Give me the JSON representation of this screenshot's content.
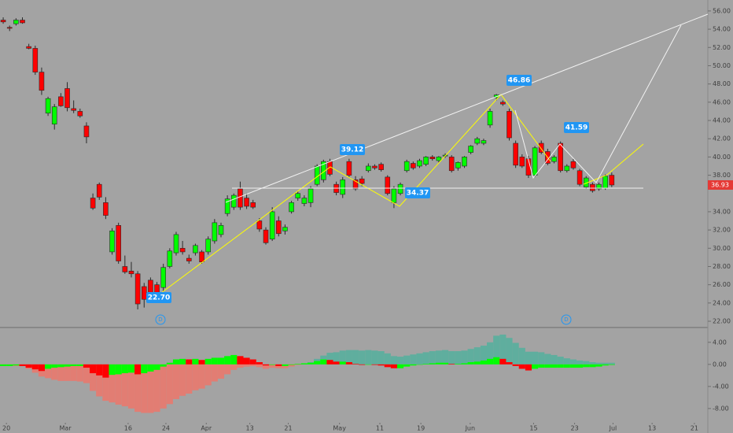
{
  "chart_data": [
    {
      "type": "candlestick",
      "xlim": [
        -0.5,
        110
      ],
      "ylim": [
        21.4,
        57.2
      ],
      "yticks": [
        {
          "value": 56,
          "label": "56.00"
        },
        {
          "value": 54,
          "label": "54.00"
        },
        {
          "value": 52,
          "label": "52.00"
        },
        {
          "value": 50,
          "label": "50.00"
        },
        {
          "value": 48,
          "label": "48.00"
        },
        {
          "value": 46,
          "label": "46.00"
        },
        {
          "value": 44,
          "label": "44.00"
        },
        {
          "value": 42,
          "label": "42.00"
        },
        {
          "value": 40,
          "label": "40.00"
        },
        {
          "value": 38,
          "label": "38.00"
        },
        {
          "value": 34,
          "label": "34.00"
        },
        {
          "value": 32,
          "label": "32.00"
        },
        {
          "value": 30,
          "label": "30.00"
        },
        {
          "value": 28,
          "label": "28.00"
        },
        {
          "value": 26,
          "label": "26.00"
        },
        {
          "value": 24,
          "label": "24.00"
        },
        {
          "value": 22,
          "label": "22.00"
        }
      ],
      "up_color": "#00ff00",
      "down_color": "#ff0000",
      "open": [
        55.0,
        54.2,
        54.6,
        55.0,
        52.1,
        51.9,
        49.3,
        44.8,
        43.6,
        46.6,
        47.5,
        45.3,
        45.0,
        43.4,
        35.5,
        37.0,
        35.0,
        29.6,
        32.5,
        28.0,
        27.5,
        27.2,
        25.8,
        26.5,
        26.0,
        25.7,
        28.0,
        29.5,
        30.0,
        28.9,
        29.5,
        29.6,
        29.6,
        30.8,
        31.5,
        33.8,
        34.5,
        36.5,
        35.5,
        35.0,
        33.0,
        32.0,
        31.0,
        33.0,
        31.9,
        34.0,
        35.5,
        34.9,
        35.0,
        37.0,
        37.5,
        39.5,
        37.0,
        35.9,
        39.5,
        37.5,
        37.6,
        38.5,
        39.0,
        39.2,
        37.8,
        35.0,
        36.0,
        38.5,
        39.3,
        39.0,
        39.2,
        40.0,
        39.6,
        40.1,
        40.0,
        38.8,
        39.0,
        40.5,
        41.5,
        41.5,
        43.5,
        46.5,
        46.0,
        45.0,
        41.5,
        40.0,
        39.8,
        38.0,
        41.5,
        40.6,
        39.5,
        41.5,
        38.5,
        39.5,
        38.5,
        36.7,
        37.0,
        36.5,
        36.6,
        38.0
      ],
      "high": [
        55.3,
        54.4,
        55.2,
        55.3,
        52.4,
        52.2,
        49.8,
        46.6,
        45.8,
        47.0,
        48.2,
        46.2,
        45.3,
        43.8,
        36.0,
        37.2,
        35.6,
        32.2,
        32.8,
        29.2,
        28.5,
        27.5,
        26.2,
        26.8,
        26.3,
        28.3,
        30.0,
        31.8,
        30.8,
        29.3,
        30.5,
        29.8,
        31.3,
        33.2,
        32.8,
        35.8,
        36.0,
        37.3,
        36.0,
        35.3,
        33.3,
        32.3,
        34.5,
        33.5,
        32.6,
        35.2,
        36.2,
        35.8,
        36.8,
        39.2,
        39.7,
        39.8,
        37.3,
        37.8,
        39.8,
        37.9,
        37.9,
        39.3,
        39.2,
        39.4,
        38.0,
        36.8,
        37.2,
        39.7,
        39.5,
        39.8,
        40.1,
        40.2,
        40.1,
        40.4,
        40.2,
        39.5,
        40.1,
        41.3,
        42.2,
        42.0,
        45.3,
        46.9,
        46.2,
        45.3,
        41.8,
        40.3,
        40.1,
        41.2,
        41.8,
        40.9,
        40.2,
        41.7,
        39.2,
        39.8,
        38.7,
        37.9,
        37.2,
        37.2,
        38.1,
        38.3
      ],
      "low": [
        54.6,
        53.8,
        54.4,
        54.6,
        51.8,
        49.0,
        46.8,
        44.5,
        43.0,
        45.5,
        45.0,
        44.8,
        44.3,
        41.5,
        34.2,
        35.3,
        33.2,
        29.3,
        28.3,
        27.2,
        26.8,
        23.3,
        23.5,
        24.2,
        24.2,
        25.3,
        27.8,
        29.2,
        29.3,
        28.3,
        29.2,
        28.3,
        29.3,
        30.5,
        31.2,
        33.5,
        34.2,
        34.2,
        34.3,
        34.3,
        31.8,
        30.4,
        30.8,
        31.3,
        31.5,
        33.8,
        35.2,
        34.6,
        34.5,
        36.8,
        37.2,
        37.9,
        35.8,
        35.5,
        37.8,
        36.3,
        36.8,
        38.3,
        38.6,
        38.4,
        35.8,
        34.4,
        35.8,
        38.3,
        38.6,
        38.8,
        39.0,
        39.6,
        39.4,
        39.9,
        38.3,
        38.5,
        38.8,
        40.3,
        41.3,
        41.3,
        43.2,
        46.2,
        45.6,
        41.8,
        38.8,
        38.8,
        37.7,
        37.8,
        40.3,
        39.1,
        39.3,
        38.3,
        38.3,
        38.6,
        36.8,
        36.5,
        36.1,
        36.3,
        36.4,
        36.7
      ],
      "close": [
        54.8,
        54.1,
        55.0,
        54.7,
        51.9,
        49.3,
        47.3,
        46.4,
        45.5,
        45.6,
        45.4,
        45.1,
        44.5,
        42.2,
        34.4,
        35.6,
        33.6,
        31.9,
        28.6,
        27.4,
        27.2,
        23.9,
        24.4,
        24.6,
        24.4,
        27.9,
        29.7,
        31.5,
        29.6,
        28.6,
        30.3,
        28.5,
        31.0,
        32.8,
        32.5,
        35.4,
        35.8,
        34.5,
        34.6,
        34.5,
        32.1,
        30.6,
        34.0,
        31.6,
        32.3,
        35.0,
        36.0,
        35.5,
        36.5,
        39.0,
        39.5,
        38.1,
        36.1,
        37.5,
        38.0,
        36.5,
        37.1,
        39.0,
        38.8,
        38.6,
        36.0,
        36.5,
        37.0,
        39.5,
        38.8,
        39.6,
        40.0,
        39.8,
        40.0,
        40.2,
        38.5,
        39.4,
        40.0,
        41.2,
        42.0,
        41.8,
        45.0,
        46.8,
        45.8,
        42.1,
        39.1,
        39.0,
        38.0,
        41.0,
        40.5,
        39.3,
        40.0,
        38.5,
        39.0,
        38.8,
        37.0,
        37.7,
        36.3,
        37.0,
        37.9,
        36.93
      ],
      "last_price": 36.93,
      "annotations": [
        "39.12",
        "46.86",
        "41.59",
        "34.37",
        "22.70"
      ],
      "event_markers": [
        "D",
        "D"
      ]
    },
    {
      "type": "bar",
      "xlim": [
        -0.5,
        110
      ],
      "ylim": [
        -10.3,
        6.4
      ],
      "yticks": [
        {
          "value": 4,
          "label": "4.00"
        },
        {
          "value": 0,
          "label": "0.00"
        },
        {
          "value": -4,
          "label": "-4.00"
        },
        {
          "value": -8,
          "label": "-8.00"
        }
      ],
      "xticks": [
        {
          "value": 0.5,
          "label": "20"
        },
        {
          "value": 9.7,
          "label": "Mar"
        },
        {
          "value": 19.5,
          "label": "16"
        },
        {
          "value": 25.4,
          "label": "24"
        },
        {
          "value": 31.7,
          "label": "Apr"
        },
        {
          "value": 38.5,
          "label": "13"
        },
        {
          "value": 44.5,
          "label": "21"
        },
        {
          "value": 52.5,
          "label": "May"
        },
        {
          "value": 58.8,
          "label": "11"
        },
        {
          "value": 65.2,
          "label": "19"
        },
        {
          "value": 72.9,
          "label": "Jun"
        },
        {
          "value": 82.8,
          "label": "15"
        },
        {
          "value": 89.2,
          "label": "23"
        },
        {
          "value": 95.2,
          "label": "Jul"
        },
        {
          "value": 101.3,
          "label": "13"
        },
        {
          "value": 107.9,
          "label": "21"
        }
      ],
      "series": [
        {
          "color_positive": "#5fae9e",
          "color_negative": "#e27d73",
          "values": [
            -0.3,
            -0.3,
            -0.3,
            -0.3,
            -0.8,
            -1.5,
            -2.2,
            -2.5,
            -2.8,
            -3.0,
            -3.0,
            -3.0,
            -3.1,
            -3.4,
            -4.8,
            -5.8,
            -6.6,
            -6.9,
            -7.3,
            -7.6,
            -8.0,
            -8.6,
            -8.8,
            -8.8,
            -8.6,
            -8.0,
            -7.2,
            -6.3,
            -5.7,
            -5.3,
            -4.7,
            -4.4,
            -3.8,
            -3.1,
            -2.6,
            -1.8,
            -1.0,
            -0.6,
            -0.4,
            -0.3,
            -0.5,
            -0.8,
            -0.6,
            -0.7,
            -0.7,
            -0.4,
            -0.1,
            0.1,
            0.4,
            1.0,
            1.6,
            2.1,
            2.2,
            2.5,
            2.6,
            2.6,
            2.5,
            2.6,
            2.5,
            2.4,
            2.0,
            1.5,
            1.4,
            1.6,
            1.8,
            2.0,
            2.2,
            2.4,
            2.5,
            2.6,
            2.4,
            2.4,
            2.5,
            2.8,
            3.1,
            3.4,
            4.0,
            5.2,
            5.4,
            4.8,
            3.9,
            3.0,
            2.3,
            2.3,
            2.2,
            1.9,
            1.7,
            1.4,
            1.1,
            0.9,
            0.7,
            0.6,
            0.4,
            0.3,
            0.3,
            0.3
          ]
        },
        {
          "color_up": "#00ff00",
          "color_down": "#ff0000",
          "values": [
            -0.3,
            -0.3,
            -0.2,
            -0.3,
            -0.6,
            -0.9,
            -1.2,
            -0.8,
            -0.6,
            -0.5,
            -0.4,
            -0.3,
            -0.3,
            -0.6,
            -1.6,
            -2.0,
            -2.4,
            -1.9,
            -1.8,
            -1.6,
            -1.5,
            -1.8,
            -1.6,
            -1.3,
            -1.0,
            -0.4,
            0.3,
            0.9,
            1.0,
            0.9,
            1.0,
            0.8,
            1.0,
            1.2,
            1.2,
            1.5,
            1.7,
            1.5,
            1.2,
            0.9,
            0.4,
            -0.2,
            -0.1,
            -0.3,
            -0.3,
            -0.1,
            0.1,
            0.2,
            0.3,
            0.6,
            0.9,
            0.8,
            0.5,
            0.5,
            0.4,
            0.1,
            -0.1,
            0.0,
            -0.1,
            -0.2,
            -0.5,
            -0.7,
            -0.7,
            -0.4,
            -0.2,
            0.0,
            0.1,
            0.2,
            0.3,
            0.3,
            0.1,
            0.1,
            0.2,
            0.4,
            0.5,
            0.7,
            1.0,
            1.3,
            1.0,
            0.4,
            -0.3,
            -0.8,
            -1.1,
            -0.8,
            -0.6,
            -0.6,
            -0.6,
            -0.6,
            -0.6,
            -0.6,
            -0.6,
            -0.5,
            -0.5,
            -0.4,
            -0.2,
            -0.1
          ]
        }
      ]
    }
  ]
}
